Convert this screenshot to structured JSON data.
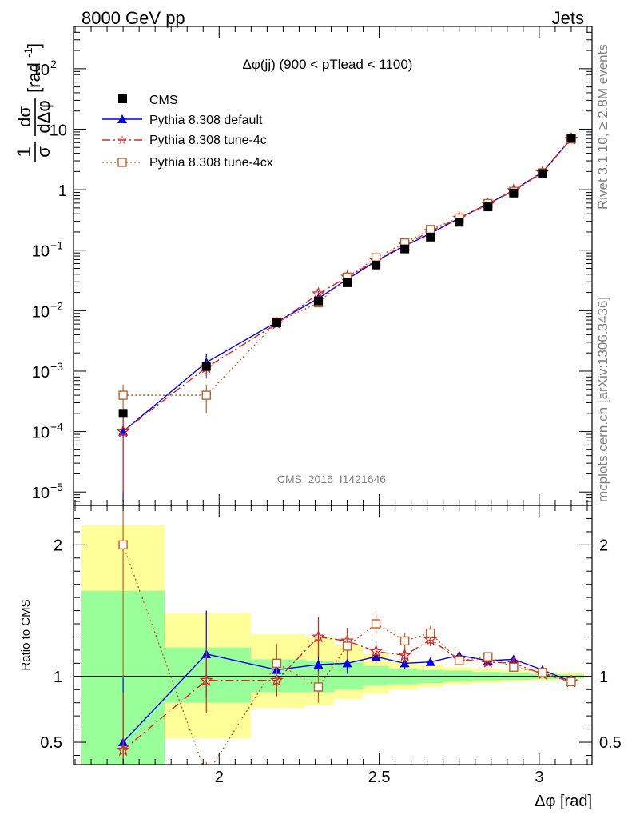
{
  "header": {
    "left": "8000 GeV pp",
    "right": "Jets"
  },
  "side_labels": {
    "rivet": "Rivet 3.1.10, ≥ 2.8M events",
    "mcplots": "mcplots.cern.ch [arXiv:1306.3436]"
  },
  "chart_data": [
    {
      "type": "line",
      "title": "Δφ(jj) (900 < pTlead <  1100)",
      "ylabel_parts": [
        "1",
        "dσ",
        "σ",
        "dΔφ",
        "[rad",
        "-1",
        "]"
      ],
      "yscale": "log",
      "ylim": [
        6e-06,
        500
      ],
      "xlim": [
        1.545,
        3.165
      ],
      "legend_position": "top-left",
      "watermark": "CMS_2016_I1421646",
      "y_ticks": [
        {
          "v": 1e-05,
          "base": "10",
          "exp": "−5"
        },
        {
          "v": 0.0001,
          "base": "10",
          "exp": "−4"
        },
        {
          "v": 0.001,
          "base": "10",
          "exp": "−3"
        },
        {
          "v": 0.01,
          "base": "10",
          "exp": "−2"
        },
        {
          "v": 0.1,
          "base": "10",
          "exp": "−1"
        },
        {
          "v": 1,
          "base": "1",
          "exp": ""
        },
        {
          "v": 10,
          "base": "10",
          "exp": ""
        },
        {
          "v": 100,
          "base": "10",
          "exp": "2"
        }
      ],
      "series": [
        {
          "name": "CMS",
          "color": "#000000",
          "marker": "square",
          "x": [
            1.7,
            1.96,
            2.18,
            2.31,
            2.4,
            2.49,
            2.58,
            2.66,
            2.75,
            2.84,
            2.92,
            3.01,
            3.1
          ],
          "y": [
            0.0002,
            0.0012,
            0.0063,
            0.0145,
            0.029,
            0.057,
            0.105,
            0.165,
            0.29,
            0.52,
            0.88,
            1.85,
            7.1
          ]
        },
        {
          "name": "Pythia 8.308 default",
          "color": "#0000ee",
          "marker": "triangle",
          "dash": "",
          "x": [
            1.7,
            1.96,
            2.18,
            2.31,
            2.4,
            2.49,
            2.58,
            2.66,
            2.75,
            2.84,
            2.92,
            3.01,
            3.1
          ],
          "y": [
            0.0001,
            0.0014,
            0.0065,
            0.016,
            0.033,
            0.066,
            0.118,
            0.188,
            0.34,
            0.58,
            0.98,
            1.95,
            7.0
          ],
          "yerr": [
            0.0001,
            0.0005,
            0.0007,
            0.0015,
            0.003,
            0.005,
            0.008,
            0.01,
            0.015,
            0.02,
            0.02,
            0.03,
            0.05
          ]
        },
        {
          "name": "Pythia 8.308 tune-4c",
          "color": "#dd2222",
          "marker": "star",
          "dash": "10,4,2,4",
          "x": [
            1.7,
            1.96,
            2.18,
            2.31,
            2.4,
            2.49,
            2.58,
            2.66,
            2.75,
            2.84,
            2.92,
            3.01,
            3.1
          ],
          "y": [
            0.0001,
            0.00115,
            0.0061,
            0.019,
            0.036,
            0.067,
            0.123,
            0.205,
            0.34,
            0.57,
            0.97,
            1.92,
            6.9
          ],
          "yerr": [
            9e-05,
            0.0004,
            0.0007,
            0.002,
            0.004,
            0.006,
            0.009,
            0.012,
            0.015,
            0.02,
            0.02,
            0.03,
            0.05
          ]
        },
        {
          "name": "Pythia 8.308 tune-4cx",
          "color": "#c0602a",
          "marker": "open-square",
          "dash": "2,3",
          "x": [
            1.7,
            1.96,
            2.18,
            2.31,
            2.4,
            2.49,
            2.58,
            2.66,
            2.75,
            2.84,
            2.92,
            3.01,
            3.1
          ],
          "y": [
            0.0004,
            0.0004,
            0.0065,
            0.0135,
            0.036,
            0.075,
            0.132,
            0.22,
            0.34,
            0.59,
            0.94,
            1.9,
            6.9
          ],
          "yerr": [
            0.0002,
            0.0002,
            0.0008,
            0.0015,
            0.004,
            0.006,
            0.01,
            0.013,
            0.015,
            0.02,
            0.02,
            0.03,
            0.05
          ]
        }
      ]
    },
    {
      "type": "line",
      "ylabel": "Ratio to CMS",
      "ylim": [
        0.33,
        2.3
      ],
      "xlim": [
        1.545,
        3.165
      ],
      "xlabel": "Δφ [rad]",
      "x_ticks": [
        2,
        2.5,
        3
      ],
      "x_tick_labels": [
        "2",
        "2.5",
        "3"
      ],
      "y_ticks": [
        0.5,
        1,
        2
      ],
      "y_tick_labels": [
        "0.5",
        "1",
        "2"
      ],
      "reference_line": 1,
      "bands": {
        "bins": [
          [
            1.57,
            1.83
          ],
          [
            1.83,
            2.1
          ],
          [
            2.1,
            2.27
          ],
          [
            2.27,
            2.36
          ],
          [
            2.36,
            2.45
          ],
          [
            2.45,
            2.53
          ],
          [
            2.53,
            2.62
          ],
          [
            2.62,
            2.7
          ],
          [
            2.7,
            2.79
          ],
          [
            2.79,
            2.88
          ],
          [
            2.88,
            2.97
          ],
          [
            2.97,
            3.06
          ],
          [
            3.06,
            3.14
          ]
        ],
        "green": [
          [
            0.33,
            1.65
          ],
          [
            0.8,
            1.22
          ],
          [
            0.88,
            1.13
          ],
          [
            0.88,
            1.12
          ],
          [
            0.9,
            1.11
          ],
          [
            0.93,
            1.08
          ],
          [
            0.94,
            1.06
          ],
          [
            0.95,
            1.05
          ],
          [
            0.96,
            1.045
          ],
          [
            0.97,
            1.035
          ],
          [
            0.975,
            1.03
          ],
          [
            0.98,
            1.02
          ],
          [
            0.985,
            1.015
          ]
        ],
        "yellow": [
          [
            0.33,
            2.15
          ],
          [
            0.53,
            1.48
          ],
          [
            0.76,
            1.32
          ],
          [
            0.78,
            1.3
          ],
          [
            0.83,
            1.24
          ],
          [
            0.87,
            1.17
          ],
          [
            0.9,
            1.12
          ],
          [
            0.92,
            1.09
          ],
          [
            0.94,
            1.07
          ],
          [
            0.95,
            1.06
          ],
          [
            0.96,
            1.05
          ],
          [
            0.97,
            1.03
          ],
          [
            0.98,
            1.03
          ]
        ],
        "colors": {
          "green": "#99ff99",
          "yellow": "#ffff99"
        }
      },
      "series": [
        {
          "name": "Pythia 8.308 default",
          "x": [
            1.7,
            1.96,
            2.18,
            2.31,
            2.4,
            2.49,
            2.58,
            2.66,
            2.75,
            2.84,
            2.92,
            3.01,
            3.1
          ],
          "y": [
            0.5,
            1.17,
            1.05,
            1.09,
            1.1,
            1.15,
            1.1,
            1.11,
            1.16,
            1.12,
            1.13,
            1.05,
            0.96
          ],
          "yerr": [
            0.5,
            0.33,
            0.06,
            0.08,
            0.08,
            0.05,
            0.04,
            0.03,
            0.03,
            0.02,
            0.02,
            0.01,
            0.01
          ]
        },
        {
          "name": "Pythia 8.308 tune-4c",
          "x": [
            1.7,
            1.96,
            2.18,
            2.31,
            2.4,
            2.49,
            2.58,
            2.66,
            2.75,
            2.84,
            2.92,
            3.01,
            3.1
          ],
          "y": [
            0.44,
            0.97,
            0.97,
            1.3,
            1.27,
            1.19,
            1.16,
            1.28,
            1.13,
            1.11,
            1.1,
            1.02,
            0.96
          ],
          "yerr": [
            0.44,
            0.25,
            0.12,
            0.15,
            0.1,
            0.07,
            0.06,
            0.05,
            0.03,
            0.03,
            0.02,
            0.01,
            0.01
          ]
        },
        {
          "name": "Pythia 8.308 tune-4cx",
          "x": [
            1.7,
            1.96,
            2.18,
            2.31,
            2.4,
            2.49,
            2.58,
            2.66,
            2.75,
            2.84,
            2.92,
            3.01,
            3.1
          ],
          "y": [
            2.0,
            0.25,
            1.1,
            0.92,
            1.23,
            1.4,
            1.27,
            1.33,
            1.12,
            1.15,
            1.07,
            1.03,
            0.96
          ],
          "yerr": [
            1.0,
            0.1,
            0.15,
            0.12,
            0.1,
            0.08,
            0.06,
            0.05,
            0.03,
            0.03,
            0.02,
            0.01,
            0.01
          ]
        }
      ]
    }
  ]
}
